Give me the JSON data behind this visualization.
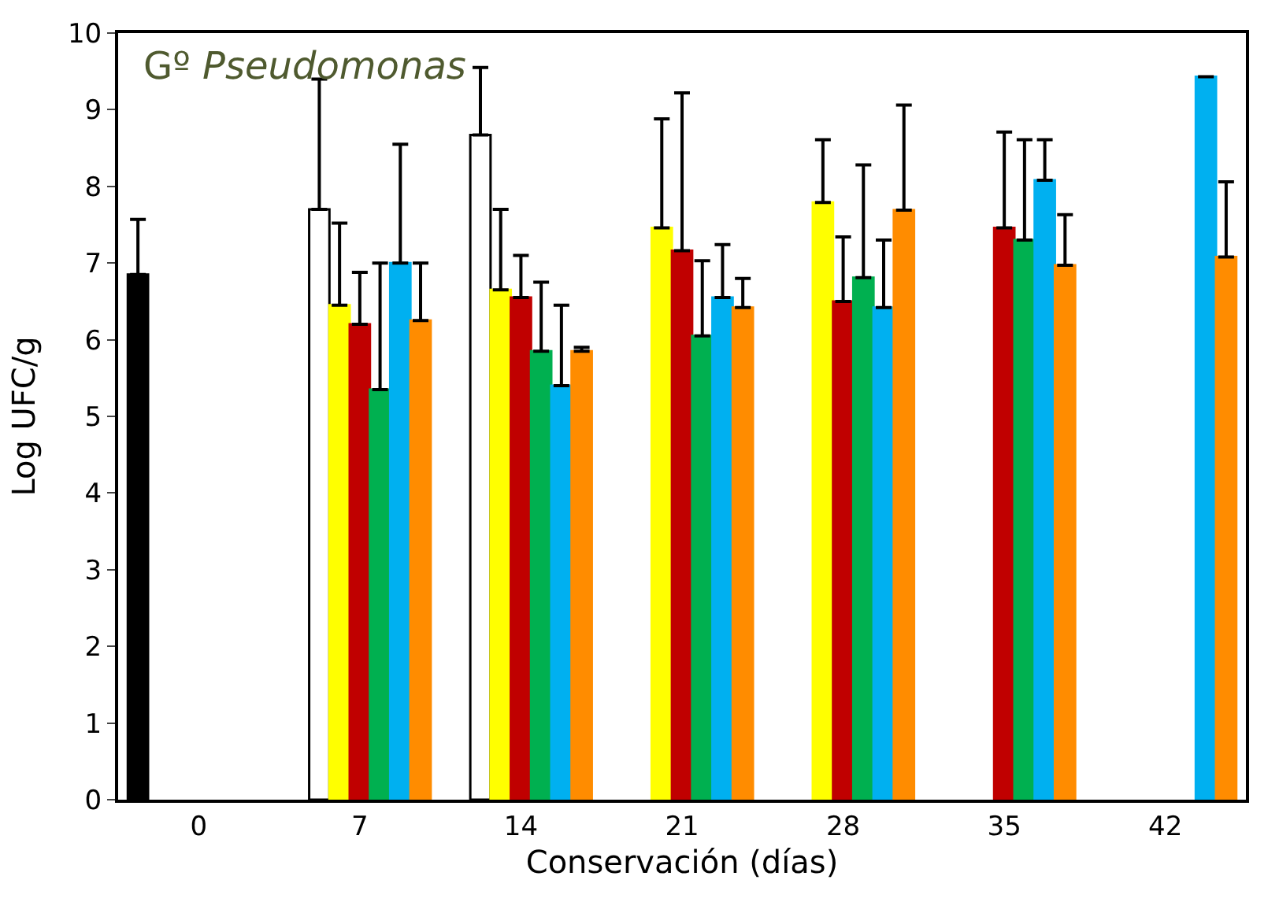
{
  "chart_data": {
    "type": "bar",
    "title": "Gº Pseudomonas",
    "xlabel": "Conservación (días)",
    "ylabel": "Log UFC/g",
    "categories": [
      "0",
      "7",
      "14",
      "21",
      "28",
      "35",
      "42"
    ],
    "ylim": [
      0,
      10
    ],
    "yticks": [
      0,
      1,
      2,
      3,
      4,
      5,
      6,
      7,
      8,
      9,
      10
    ],
    "series": [
      {
        "color": "#000000",
        "values": [
          6.85,
          null,
          null,
          null,
          null,
          null,
          null
        ],
        "errors": [
          [
            6.85,
            7.57
          ],
          null,
          null,
          null,
          null,
          null,
          null
        ]
      },
      {
        "color": "#ffffff",
        "values": [
          null,
          7.7,
          8.67,
          null,
          null,
          null,
          null
        ],
        "errors": [
          null,
          [
            7.7,
            9.4
          ],
          [
            8.67,
            9.55
          ],
          null,
          null,
          null,
          null
        ]
      },
      {
        "color": "#ffff00",
        "values": [
          null,
          6.45,
          6.65,
          7.46,
          7.79,
          null,
          null
        ],
        "errors": [
          null,
          [
            6.45,
            7.52
          ],
          [
            6.65,
            7.7
          ],
          [
            7.46,
            8.88
          ],
          [
            7.79,
            8.61
          ],
          null,
          null
        ]
      },
      {
        "color": "#c00000",
        "values": [
          null,
          6.2,
          6.55,
          7.16,
          6.5,
          7.46,
          null
        ],
        "errors": [
          null,
          [
            6.2,
            6.88
          ],
          [
            6.55,
            7.1
          ],
          [
            7.16,
            9.22
          ],
          [
            6.5,
            7.34
          ],
          [
            7.46,
            8.71
          ],
          null
        ]
      },
      {
        "color": "#00b050",
        "values": [
          null,
          5.35,
          5.85,
          6.05,
          6.81,
          7.3,
          null
        ],
        "errors": [
          null,
          [
            5.35,
            7.0
          ],
          [
            5.85,
            6.75
          ],
          [
            6.05,
            7.03
          ],
          [
            6.81,
            8.28
          ],
          [
            7.3,
            8.61
          ],
          null
        ]
      },
      {
        "color": "#00b0f0",
        "values": [
          null,
          7.0,
          5.4,
          6.55,
          6.42,
          8.08,
          9.43
        ],
        "errors": [
          null,
          [
            7.0,
            8.55
          ],
          [
            5.4,
            6.45
          ],
          [
            6.55,
            7.24
          ],
          [
            6.42,
            7.3
          ],
          [
            8.08,
            8.61
          ],
          null
        ]
      },
      {
        "color": "#ff8c00",
        "values": [
          null,
          6.25,
          5.85,
          6.42,
          7.69,
          6.97,
          7.08
        ],
        "errors": [
          null,
          [
            6.25,
            7.0
          ],
          [
            5.85,
            5.9
          ],
          [
            6.42,
            6.8
          ],
          [
            7.69,
            9.06
          ],
          [
            6.97,
            7.63
          ],
          [
            7.08,
            8.06
          ]
        ]
      }
    ]
  }
}
